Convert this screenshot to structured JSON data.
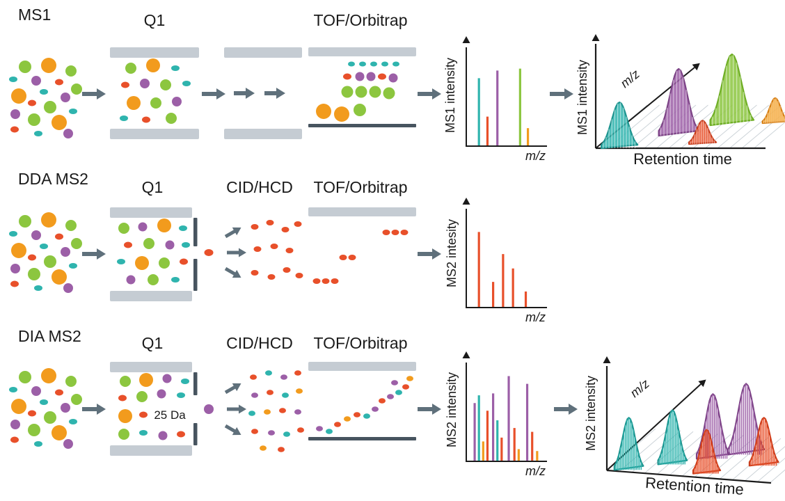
{
  "palette": {
    "orange": "#f29b1d",
    "orange_dark": "#d87f12",
    "green": "#8cc63f",
    "green_dark": "#6fae25",
    "purple": "#9c5fa7",
    "purple_dark": "#7c4386",
    "teal": "#2fb4ae",
    "teal_dark": "#1d948f",
    "red": "#e8502a",
    "red_dark": "#c93d1c",
    "plate_gray": "#c5ccd3",
    "plate_dark": "#47545f",
    "arrow_gray": "#5f707b",
    "axis": "#1a1a1a",
    "grid": "#ccd3d8"
  },
  "rows": {
    "ms1": {
      "title": "MS1",
      "q1_label": "Q1",
      "analyzer_label": "TOF/Orbitrap"
    },
    "dda": {
      "title": "DDA MS2",
      "q1_label": "Q1",
      "frag_label": "CID/HCD",
      "analyzer_label": "TOF/Orbitrap"
    },
    "dia": {
      "title": "DIA MS2",
      "q1_label": "Q1",
      "frag_label": "CID/HCD",
      "analyzer_label": "TOF/Orbitrap",
      "isolation_window": "25 Da"
    }
  },
  "chart_data": [
    {
      "id": "ms1-spectrum",
      "type": "bar",
      "ylabel": "MS1 intensity",
      "xlabel": "m/z",
      "bars": [
        {
          "x": 0.1,
          "h": 0.7,
          "color": "teal"
        },
        {
          "x": 0.22,
          "h": 0.3,
          "color": "red"
        },
        {
          "x": 0.36,
          "h": 0.78,
          "color": "purple"
        },
        {
          "x": 0.68,
          "h": 0.8,
          "color": "green"
        },
        {
          "x": 0.79,
          "h": 0.18,
          "color": "orange"
        }
      ]
    },
    {
      "id": "ms1-3d",
      "type": "3d-peaks",
      "ylabel": "MS1 intensity",
      "xlabel": "Retention time",
      "zlabel": "m/z",
      "peaks": [
        {
          "rt": 0.14,
          "mz": 0.0,
          "h": 0.55,
          "w": 0.2,
          "color": "teal"
        },
        {
          "rt": 0.4,
          "mz": 0.3,
          "h": 0.8,
          "w": 0.22,
          "color": "purple"
        },
        {
          "rt": 0.64,
          "mz": 0.55,
          "h": 0.85,
          "w": 0.24,
          "color": "green"
        },
        {
          "rt": 0.6,
          "mz": 0.1,
          "h": 0.28,
          "w": 0.15,
          "color": "red"
        },
        {
          "rt": 0.88,
          "mz": 0.6,
          "h": 0.3,
          "w": 0.14,
          "color": "orange"
        }
      ]
    },
    {
      "id": "dda-spectrum",
      "type": "bar",
      "ylabel": "MS2 intesity",
      "xlabel": "m/z",
      "bars": [
        {
          "x": 0.1,
          "h": 0.78,
          "color": "red"
        },
        {
          "x": 0.3,
          "h": 0.26,
          "color": "red"
        },
        {
          "x": 0.44,
          "h": 0.55,
          "color": "red"
        },
        {
          "x": 0.58,
          "h": 0.4,
          "color": "red"
        },
        {
          "x": 0.76,
          "h": 0.16,
          "color": "red"
        }
      ]
    },
    {
      "id": "dia-spectrum",
      "type": "bar",
      "ylabel": "MS2 intensity",
      "xlabel": "m/z",
      "bars": [
        {
          "x": 0.04,
          "h": 0.6,
          "color": "purple"
        },
        {
          "x": 0.1,
          "h": 0.68,
          "color": "teal"
        },
        {
          "x": 0.16,
          "h": 0.2,
          "color": "orange"
        },
        {
          "x": 0.22,
          "h": 0.52,
          "color": "red"
        },
        {
          "x": 0.3,
          "h": 0.7,
          "color": "purple"
        },
        {
          "x": 0.36,
          "h": 0.42,
          "color": "teal"
        },
        {
          "x": 0.42,
          "h": 0.24,
          "color": "red"
        },
        {
          "x": 0.52,
          "h": 0.88,
          "color": "purple"
        },
        {
          "x": 0.6,
          "h": 0.34,
          "color": "red"
        },
        {
          "x": 0.66,
          "h": 0.12,
          "color": "orange"
        },
        {
          "x": 0.78,
          "h": 0.8,
          "color": "purple"
        },
        {
          "x": 0.85,
          "h": 0.3,
          "color": "red"
        },
        {
          "x": 0.92,
          "h": 0.1,
          "color": "orange"
        }
      ]
    },
    {
      "id": "dia-3d",
      "type": "3d-peaks",
      "ylabel": "MS2 intensity",
      "xlabel": "Retention time",
      "zlabel": "m/z",
      "peaks": [
        {
          "rt": 0.12,
          "mz": 0.05,
          "h": 0.5,
          "w": 0.16,
          "color": "teal"
        },
        {
          "rt": 0.33,
          "mz": 0.25,
          "h": 0.52,
          "w": 0.16,
          "color": "teal"
        },
        {
          "rt": 0.52,
          "mz": 0.45,
          "h": 0.62,
          "w": 0.18,
          "color": "purple"
        },
        {
          "rt": 0.68,
          "mz": 0.6,
          "h": 0.68,
          "w": 0.2,
          "color": "purple"
        },
        {
          "rt": 0.58,
          "mz": 0.1,
          "h": 0.42,
          "w": 0.15,
          "color": "red"
        },
        {
          "rt": 0.85,
          "mz": 0.38,
          "h": 0.46,
          "w": 0.16,
          "color": "red"
        }
      ]
    }
  ]
}
